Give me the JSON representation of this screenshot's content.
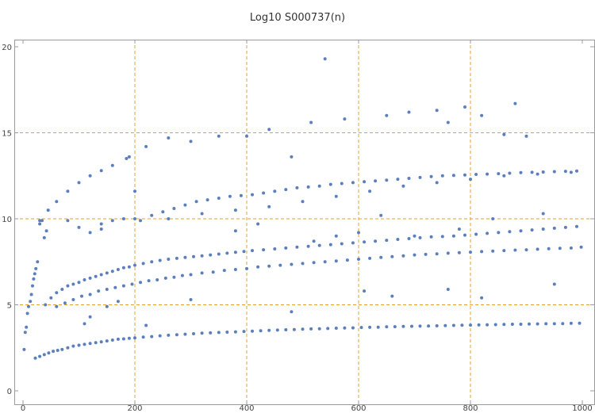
{
  "chart_data": {
    "type": "scatter",
    "title": "Log10 S000737(n)",
    "xlabel": "",
    "ylabel": "",
    "xlim": [
      0,
      1000
    ],
    "ylim": [
      0,
      20
    ],
    "x_ticks": [
      0,
      200,
      400,
      600,
      800,
      1000
    ],
    "y_ticks": [
      0,
      5,
      10,
      15,
      20
    ],
    "grid_x": [
      200,
      400,
      600,
      800
    ],
    "grid_y": [
      5,
      10,
      15
    ],
    "grid": true,
    "colors": {
      "points": "#5b7fbe",
      "grid": "#e6a030",
      "frame": "#9a9a9a"
    },
    "series": [
      {
        "points": [
          [
            2,
            2.4
          ],
          [
            4,
            3.4
          ],
          [
            6,
            3.7
          ],
          [
            8,
            4.5
          ],
          [
            10,
            4.9
          ],
          [
            13,
            5.2
          ],
          [
            15,
            5.6
          ],
          [
            17,
            6.1
          ],
          [
            19,
            6.5
          ],
          [
            21,
            6.8
          ],
          [
            23,
            7.1
          ],
          [
            26,
            7.5
          ],
          [
            30,
            9.7
          ],
          [
            34,
            9.9
          ],
          [
            38,
            8.9
          ],
          [
            42,
            9.3
          ],
          [
            22,
            1.9
          ],
          [
            30,
            2.0
          ],
          [
            38,
            2.1
          ],
          [
            46,
            2.2
          ],
          [
            54,
            2.3
          ],
          [
            62,
            2.35
          ],
          [
            70,
            2.4
          ],
          [
            80,
            2.5
          ],
          [
            90,
            2.6
          ],
          [
            100,
            2.65
          ],
          [
            110,
            2.7
          ],
          [
            120,
            2.75
          ],
          [
            130,
            2.8
          ],
          [
            140,
            2.85
          ],
          [
            150,
            2.9
          ],
          [
            160,
            2.95
          ],
          [
            170,
            3.0
          ],
          [
            180,
            3.02
          ],
          [
            190,
            3.05
          ],
          [
            200,
            3.08
          ],
          [
            215,
            3.12
          ],
          [
            230,
            3.15
          ],
          [
            245,
            3.2
          ],
          [
            260,
            3.23
          ],
          [
            275,
            3.26
          ],
          [
            290,
            3.29
          ],
          [
            305,
            3.32
          ],
          [
            320,
            3.35
          ],
          [
            335,
            3.37
          ],
          [
            350,
            3.39
          ],
          [
            365,
            3.41
          ],
          [
            380,
            3.43
          ],
          [
            395,
            3.45
          ],
          [
            410,
            3.47
          ],
          [
            425,
            3.49
          ],
          [
            440,
            3.51
          ],
          [
            455,
            3.53
          ],
          [
            470,
            3.55
          ],
          [
            485,
            3.56
          ],
          [
            500,
            3.58
          ],
          [
            515,
            3.6
          ],
          [
            530,
            3.61
          ],
          [
            545,
            3.62
          ],
          [
            560,
            3.64
          ],
          [
            575,
            3.65
          ],
          [
            590,
            3.66
          ],
          [
            605,
            3.68
          ],
          [
            620,
            3.69
          ],
          [
            635,
            3.7
          ],
          [
            650,
            3.72
          ],
          [
            665,
            3.73
          ],
          [
            680,
            3.74
          ],
          [
            695,
            3.75
          ],
          [
            710,
            3.76
          ],
          [
            725,
            3.77
          ],
          [
            740,
            3.78
          ],
          [
            755,
            3.79
          ],
          [
            770,
            3.8
          ],
          [
            785,
            3.81
          ],
          [
            800,
            3.82
          ],
          [
            815,
            3.83
          ],
          [
            830,
            3.84
          ],
          [
            845,
            3.85
          ],
          [
            860,
            3.86
          ],
          [
            875,
            3.87
          ],
          [
            890,
            3.87
          ],
          [
            905,
            3.88
          ],
          [
            920,
            3.89
          ],
          [
            935,
            3.9
          ],
          [
            950,
            3.9
          ],
          [
            965,
            3.91
          ],
          [
            980,
            3.92
          ],
          [
            995,
            3.93
          ],
          [
            40,
            5.0
          ],
          [
            50,
            5.4
          ],
          [
            60,
            5.7
          ],
          [
            70,
            5.9
          ],
          [
            80,
            6.1
          ],
          [
            90,
            6.2
          ],
          [
            100,
            6.3
          ],
          [
            110,
            6.45
          ],
          [
            120,
            6.55
          ],
          [
            130,
            6.65
          ],
          [
            140,
            6.75
          ],
          [
            150,
            6.85
          ],
          [
            160,
            6.95
          ],
          [
            170,
            7.05
          ],
          [
            180,
            7.15
          ],
          [
            190,
            7.2
          ],
          [
            200,
            7.3
          ],
          [
            215,
            7.4
          ],
          [
            230,
            7.5
          ],
          [
            245,
            7.58
          ],
          [
            260,
            7.65
          ],
          [
            275,
            7.7
          ],
          [
            290,
            7.75
          ],
          [
            305,
            7.8
          ],
          [
            320,
            7.85
          ],
          [
            335,
            7.9
          ],
          [
            350,
            7.95
          ],
          [
            365,
            8.0
          ],
          [
            380,
            8.05
          ],
          [
            395,
            8.1
          ],
          [
            410,
            8.15
          ],
          [
            430,
            8.2
          ],
          [
            450,
            8.25
          ],
          [
            470,
            8.3
          ],
          [
            490,
            8.35
          ],
          [
            510,
            8.4
          ],
          [
            530,
            8.45
          ],
          [
            550,
            8.5
          ],
          [
            570,
            8.55
          ],
          [
            590,
            8.6
          ],
          [
            610,
            8.65
          ],
          [
            630,
            8.7
          ],
          [
            650,
            8.75
          ],
          [
            670,
            8.8
          ],
          [
            690,
            8.85
          ],
          [
            710,
            8.9
          ],
          [
            730,
            8.95
          ],
          [
            750,
            8.97
          ],
          [
            770,
            9.0
          ],
          [
            790,
            9.05
          ],
          [
            810,
            9.1
          ],
          [
            830,
            9.15
          ],
          [
            850,
            9.2
          ],
          [
            870,
            9.25
          ],
          [
            890,
            9.3
          ],
          [
            910,
            9.35
          ],
          [
            930,
            9.4
          ],
          [
            950,
            9.45
          ],
          [
            970,
            9.5
          ],
          [
            990,
            9.55
          ],
          [
            60,
            4.9
          ],
          [
            75,
            5.1
          ],
          [
            90,
            5.3
          ],
          [
            105,
            5.5
          ],
          [
            120,
            5.6
          ],
          [
            135,
            5.8
          ],
          [
            150,
            5.9
          ],
          [
            165,
            6.0
          ],
          [
            180,
            6.1
          ],
          [
            195,
            6.2
          ],
          [
            210,
            6.3
          ],
          [
            225,
            6.4
          ],
          [
            240,
            6.45
          ],
          [
            255,
            6.55
          ],
          [
            270,
            6.6
          ],
          [
            285,
            6.7
          ],
          [
            300,
            6.75
          ],
          [
            320,
            6.85
          ],
          [
            340,
            6.9
          ],
          [
            360,
            7.0
          ],
          [
            380,
            7.05
          ],
          [
            400,
            7.1
          ],
          [
            420,
            7.2
          ],
          [
            440,
            7.25
          ],
          [
            460,
            7.3
          ],
          [
            480,
            7.35
          ],
          [
            500,
            7.4
          ],
          [
            520,
            7.45
          ],
          [
            540,
            7.5
          ],
          [
            560,
            7.55
          ],
          [
            580,
            7.6
          ],
          [
            600,
            7.65
          ],
          [
            620,
            7.7
          ],
          [
            640,
            7.75
          ],
          [
            660,
            7.8
          ],
          [
            680,
            7.85
          ],
          [
            700,
            7.9
          ],
          [
            720,
            7.93
          ],
          [
            740,
            7.96
          ],
          [
            760,
            8.0
          ],
          [
            780,
            8.03
          ],
          [
            800,
            8.06
          ],
          [
            820,
            8.09
          ],
          [
            840,
            8.12
          ],
          [
            860,
            8.15
          ],
          [
            880,
            8.18
          ],
          [
            900,
            8.2
          ],
          [
            920,
            8.23
          ],
          [
            940,
            8.26
          ],
          [
            960,
            8.28
          ],
          [
            980,
            8.3
          ],
          [
            998,
            8.35
          ],
          [
            30,
            9.9
          ],
          [
            45,
            10.5
          ],
          [
            60,
            11.0
          ],
          [
            80,
            11.6
          ],
          [
            100,
            12.1
          ],
          [
            120,
            12.5
          ],
          [
            140,
            12.8
          ],
          [
            160,
            13.1
          ],
          [
            185,
            13.5
          ],
          [
            210,
            9.9
          ],
          [
            230,
            10.2
          ],
          [
            250,
            10.4
          ],
          [
            270,
            10.6
          ],
          [
            290,
            10.8
          ],
          [
            310,
            11.0
          ],
          [
            330,
            11.1
          ],
          [
            350,
            11.2
          ],
          [
            370,
            11.3
          ],
          [
            390,
            11.35
          ],
          [
            410,
            11.4
          ],
          [
            430,
            11.5
          ],
          [
            450,
            11.6
          ],
          [
            470,
            11.7
          ],
          [
            490,
            11.8
          ],
          [
            510,
            11.85
          ],
          [
            530,
            11.9
          ],
          [
            550,
            12.0
          ],
          [
            570,
            12.05
          ],
          [
            590,
            12.1
          ],
          [
            610,
            12.15
          ],
          [
            630,
            12.2
          ],
          [
            650,
            12.25
          ],
          [
            670,
            12.3
          ],
          [
            690,
            12.35
          ],
          [
            710,
            12.4
          ],
          [
            730,
            12.45
          ],
          [
            750,
            12.5
          ],
          [
            770,
            12.52
          ],
          [
            790,
            12.55
          ],
          [
            810,
            12.58
          ],
          [
            830,
            12.6
          ],
          [
            850,
            12.62
          ],
          [
            870,
            12.65
          ],
          [
            890,
            12.68
          ],
          [
            910,
            12.7
          ],
          [
            930,
            12.72
          ],
          [
            950,
            12.74
          ],
          [
            970,
            12.76
          ],
          [
            990,
            12.78
          ],
          [
            80,
            9.9
          ],
          [
            100,
            9.5
          ],
          [
            120,
            9.2
          ],
          [
            140,
            9.7
          ],
          [
            160,
            9.9
          ],
          [
            180,
            10.0
          ],
          [
            200,
            11.6
          ],
          [
            260,
            10.0
          ],
          [
            320,
            10.3
          ],
          [
            380,
            10.5
          ],
          [
            440,
            10.7
          ],
          [
            500,
            11.0
          ],
          [
            560,
            11.3
          ],
          [
            620,
            11.6
          ],
          [
            680,
            11.9
          ],
          [
            740,
            12.1
          ],
          [
            800,
            12.3
          ],
          [
            860,
            12.5
          ],
          [
            920,
            12.6
          ],
          [
            980,
            12.7
          ],
          [
            190,
            13.6
          ],
          [
            220,
            14.2
          ],
          [
            260,
            14.7
          ],
          [
            300,
            14.5
          ],
          [
            350,
            14.8
          ],
          [
            400,
            14.8
          ],
          [
            440,
            15.2
          ],
          [
            480,
            13.6
          ],
          [
            515,
            15.6
          ],
          [
            540,
            19.3
          ],
          [
            575,
            15.8
          ],
          [
            650,
            16.0
          ],
          [
            690,
            16.2
          ],
          [
            740,
            16.3
          ],
          [
            760,
            15.6
          ],
          [
            790,
            16.5
          ],
          [
            820,
            16.0
          ],
          [
            860,
            14.9
          ],
          [
            880,
            16.7
          ],
          [
            900,
            14.8
          ],
          [
            110,
            3.9
          ],
          [
            120,
            4.3
          ],
          [
            150,
            4.9
          ],
          [
            170,
            5.2
          ],
          [
            220,
            3.8
          ],
          [
            300,
            5.3
          ],
          [
            480,
            4.6
          ],
          [
            610,
            5.8
          ],
          [
            660,
            5.5
          ],
          [
            760,
            5.9
          ],
          [
            820,
            5.4
          ],
          [
            950,
            6.2
          ],
          [
            140,
            9.4
          ],
          [
            200,
            10.0
          ],
          [
            380,
            9.3
          ],
          [
            420,
            9.7
          ],
          [
            520,
            8.7
          ],
          [
            560,
            9.0
          ],
          [
            600,
            9.2
          ],
          [
            640,
            10.2
          ],
          [
            700,
            9.0
          ],
          [
            780,
            9.4
          ],
          [
            840,
            10.0
          ],
          [
            930,
            10.3
          ]
        ]
      }
    ]
  }
}
